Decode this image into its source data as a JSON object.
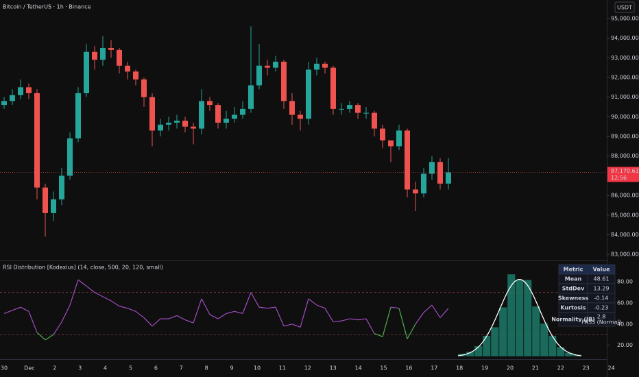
{
  "chart_data": [
    {
      "type": "candlestick",
      "title": "Bitcoin / TetherUS · 1h · Binance",
      "currency": "USDT",
      "open": [
        90600,
        90800,
        91100,
        91500,
        91200,
        86400,
        85100,
        85800,
        87000,
        88900,
        91200,
        93300,
        92900,
        93500,
        93400,
        92600,
        92300,
        91900,
        91000,
        89300,
        89600,
        89700,
        89800,
        89500,
        89400,
        90800,
        90600,
        89700,
        89900,
        90100,
        90400,
        91600,
        92600,
        92500,
        92800,
        90800,
        90100,
        89900,
        92400,
        92700,
        92500,
        90400,
        90400,
        90600,
        90200,
        90200,
        89400,
        88800,
        88500,
        89300,
        86300,
        86100,
        87100,
        87700,
        86600
      ],
      "high": [
        91000,
        91400,
        91900,
        91700,
        91400,
        86600,
        86200,
        87400,
        89200,
        91500,
        93700,
        93600,
        94100,
        93900,
        93500,
        92800,
        92400,
        92000,
        91200,
        89900,
        90000,
        90100,
        90000,
        89700,
        91400,
        91000,
        90700,
        90300,
        90500,
        90800,
        94600,
        93700,
        92900,
        93100,
        92900,
        91200,
        90300,
        92800,
        93000,
        92800,
        92600,
        90700,
        90800,
        90700,
        90500,
        90300,
        89600,
        88800,
        89600,
        89400,
        86700,
        87400,
        88000,
        87900,
        87900
      ],
      "low": [
        90400,
        90600,
        90900,
        90900,
        85800,
        83900,
        84700,
        85500,
        86800,
        88700,
        91000,
        92400,
        92600,
        93000,
        92200,
        91900,
        91600,
        90500,
        88500,
        89000,
        89300,
        89400,
        89200,
        88600,
        89100,
        90300,
        89400,
        89400,
        89700,
        89900,
        90200,
        91400,
        92100,
        92300,
        90400,
        89600,
        89300,
        89600,
        92100,
        92200,
        90100,
        90100,
        90200,
        89900,
        89900,
        89000,
        88400,
        87700,
        88300,
        85900,
        85200,
        85900,
        86800,
        86300,
        86300
      ],
      "close": [
        90800,
        91100,
        91500,
        91200,
        86400,
        85100,
        85800,
        87000,
        88900,
        91200,
        93300,
        92900,
        93500,
        93400,
        92600,
        92300,
        91900,
        91000,
        89300,
        89600,
        89700,
        89800,
        89500,
        89400,
        90800,
        90600,
        89700,
        89900,
        90100,
        90400,
        91600,
        92600,
        92500,
        92800,
        90800,
        90100,
        89900,
        92400,
        92700,
        92500,
        90400,
        90400,
        90600,
        90200,
        90200,
        89400,
        88800,
        88500,
        89300,
        86300,
        86100,
        87100,
        87700,
        86600,
        87170.61
      ],
      "up_color": "#26a69a",
      "down_color": "#ef5350",
      "last": {
        "value": 87170.61,
        "label": "87,170.61",
        "countdown": "12:56"
      },
      "ylim": [
        82690,
        95940
      ],
      "yticks": [
        {
          "value": 83000,
          "label": "83,000.00"
        },
        {
          "value": 84000,
          "label": "84,000.00"
        },
        {
          "value": 85000,
          "label": "85,000.00"
        },
        {
          "value": 86000,
          "label": "86,000.00"
        },
        {
          "value": 87000,
          "label": "87,000.00"
        },
        {
          "value": 88000,
          "label": "88,000.00"
        },
        {
          "value": 89000,
          "label": "89,000.00"
        },
        {
          "value": 90000,
          "label": "90,000.00"
        },
        {
          "value": 91000,
          "label": "91,000.00"
        },
        {
          "value": 92000,
          "label": "92,000.00"
        },
        {
          "value": 93000,
          "label": "93,000.00"
        },
        {
          "value": 94000,
          "label": "94,000.00"
        },
        {
          "value": 95000,
          "label": "95,000.00"
        }
      ],
      "categories": [
        "30",
        "Dec",
        "2",
        "3",
        "4",
        "5",
        "6",
        "7",
        "8",
        "9",
        "10",
        "11",
        "12",
        "13",
        "14",
        "15",
        "16",
        "17",
        "18",
        "19",
        "20",
        "21",
        "22",
        "23",
        "24"
      ]
    },
    {
      "type": "line",
      "title": "RSI Distribution [Kodexius] (14, close, 500, 20, 120, small)",
      "series": [
        {
          "name": "RSI",
          "color": "#a24cc2",
          "low_color": "#4caf50",
          "values": [
            50,
            53,
            56,
            52,
            32,
            25,
            30,
            42,
            58,
            82,
            76,
            70,
            66,
            62,
            57,
            55,
            52,
            46,
            38,
            45,
            45,
            48,
            44,
            41,
            64,
            49,
            45,
            50,
            52,
            50,
            70,
            56,
            55,
            56,
            38,
            40,
            37,
            64,
            58,
            55,
            42,
            43,
            45,
            44,
            45,
            31,
            28,
            56,
            55,
            26,
            40,
            51,
            58,
            46,
            55
          ]
        }
      ],
      "levels": [
        70,
        30
      ],
      "ylim": [
        8,
        99
      ],
      "yticks": [
        {
          "value": 20,
          "label": "20.00"
        },
        {
          "value": 40,
          "label": "40.00"
        },
        {
          "value": 60,
          "label": "60.00"
        },
        {
          "value": 80,
          "label": "80.00"
        }
      ],
      "histogram": {
        "bins": [
          10,
          15,
          20,
          25,
          30,
          35,
          40,
          45,
          50,
          55,
          60,
          65,
          70,
          75,
          80,
          85
        ],
        "counts": [
          3,
          5,
          11,
          22,
          31,
          52,
          87,
          81,
          81,
          53,
          35,
          22,
          10,
          4,
          2
        ],
        "color": "#1d8a75"
      },
      "table": {
        "header": [
          "Metric",
          "Value"
        ],
        "rows": [
          [
            "Mean",
            "48.61"
          ],
          [
            "StdDev",
            "13.29"
          ],
          [
            "Skewness",
            "-0.14"
          ],
          [
            "Kurtosis",
            "-0.23"
          ],
          [
            "Normality (JB)",
            "2.8",
            "PASS (Normal)"
          ]
        ],
        "value_colors": [
          "#f5c542",
          "#f5c542",
          "#ef5f8a",
          "#f5c542",
          "#4caf50"
        ]
      }
    }
  ]
}
